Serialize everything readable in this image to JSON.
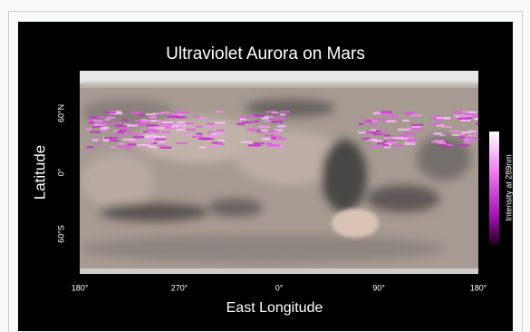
{
  "figure": {
    "title": "Ultraviolet Aurora on Mars",
    "x_axis": {
      "label": "East Longitude",
      "ticks": [
        "180°",
        "270°",
        "0°",
        "90°",
        "180°"
      ]
    },
    "y_axis": {
      "label": "Latitude",
      "ticks": [
        "60°N",
        "0°",
        "60°S"
      ]
    },
    "colorbar": {
      "label": "Intensity at 289nm"
    }
  }
}
